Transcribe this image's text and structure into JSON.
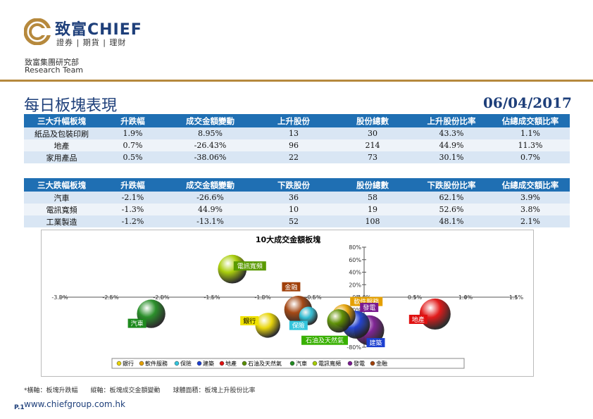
{
  "header": {
    "brand": "致富CHIEF",
    "tagline": "證券 | 期貨 | 理財",
    "team_cn": "致富集團研究部",
    "team_en": "Research Team"
  },
  "page": {
    "title": "每日板塊表現",
    "date": "06/04/2017",
    "footnote": "*橫軸：板塊升跌幅　　縱軸：板塊成交金額變動　　球體面積：板塊上升股份比率",
    "page_number": "P.1",
    "website": "www.chiefgroup.com.hk"
  },
  "top_gainers": {
    "headers": [
      "三大升幅板塊",
      "升跌幅",
      "成交金額變動",
      "上升股份",
      "股份總數",
      "上升股份比率",
      "佔總成交額比率"
    ],
    "rows": [
      [
        "紙品及包裝印刷",
        "1.9%",
        "8.95%",
        "13",
        "30",
        "43.3%",
        "1.1%"
      ],
      [
        "地產",
        "0.7%",
        "-26.43%",
        "96",
        "214",
        "44.9%",
        "11.3%"
      ],
      [
        "家用產品",
        "0.5%",
        "-38.06%",
        "22",
        "73",
        "30.1%",
        "0.7%"
      ]
    ]
  },
  "top_losers": {
    "headers": [
      "三大跌幅板塊",
      "升跌幅",
      "成交金額變動",
      "下跌股份",
      "股份總數",
      "下跌股份比率",
      "佔總成交額比率"
    ],
    "rows": [
      [
        "汽車",
        "-2.1%",
        "-26.6%",
        "36",
        "58",
        "62.1%",
        "3.9%"
      ],
      [
        "電訊寬頻",
        "-1.3%",
        "44.9%",
        "10",
        "19",
        "52.6%",
        "3.8%"
      ],
      [
        "工業製造",
        "-1.2%",
        "-13.1%",
        "52",
        "108",
        "48.1%",
        "2.1%"
      ]
    ]
  },
  "chart_data": {
    "type": "scatter",
    "title": "10大成交金額板塊",
    "xlim": [
      -3.0,
      1.5
    ],
    "ylim": [
      -80,
      80
    ],
    "x_ticks": [
      "-3.0%",
      "-2.5%",
      "-2.0%",
      "-1.5%",
      "-1.0%",
      "-0.5%",
      "0.0%",
      "0.5%",
      "1.0%",
      "1.5%"
    ],
    "y_ticks": [
      "80%",
      "60%",
      "40%",
      "20%",
      "0%",
      "-20%",
      "-40%",
      "-60%",
      "-80%"
    ],
    "legend_position": "bottom",
    "series": [
      {
        "name": "銀行",
        "x": -0.95,
        "y": -45,
        "size": 0.4,
        "color": "#e8d400"
      },
      {
        "name": "軟件服務",
        "x": -0.2,
        "y": -30,
        "size": 0.35,
        "color": "#e5a000"
      },
      {
        "name": "保險",
        "x": -0.55,
        "y": -30,
        "size": 0.22,
        "color": "#33c5dd"
      },
      {
        "name": "建築",
        "x": -0.08,
        "y": -44,
        "size": 0.5,
        "color": "#1c3fd0"
      },
      {
        "name": "地產",
        "x": 0.7,
        "y": -27,
        "size": 0.62,
        "color": "#e01010"
      },
      {
        "name": "石油及天然氣",
        "x": -0.25,
        "y": -38,
        "size": 0.35,
        "color": "#5a8f00"
      },
      {
        "name": "汽車",
        "x": -2.1,
        "y": -26.6,
        "size": 0.52,
        "color": "#208a20"
      },
      {
        "name": "電訊寬頻",
        "x": -1.3,
        "y": 44.9,
        "size": 0.53,
        "color": "#a6cc00"
      },
      {
        "name": "發電",
        "x": 0.05,
        "y": -53,
        "size": 0.58,
        "color": "#7a1a90"
      },
      {
        "name": "金融",
        "x": -0.65,
        "y": -20,
        "size": 0.5,
        "color": "#a0400a"
      }
    ],
    "label_badges": [
      {
        "series": "電訊寬頻",
        "text": "電訊寬頻",
        "bg": "#5a9a00"
      },
      {
        "series": "金融",
        "text": "金融",
        "bg": "#a0400a"
      },
      {
        "series": "軟件服務",
        "text": "軟件服務",
        "bg": "#e5a000"
      },
      {
        "series": "發電",
        "text": "發電",
        "bg": "#7a1a90"
      },
      {
        "series": "地產",
        "text": "地產",
        "bg": "#e01010"
      },
      {
        "series": "銀行",
        "text": "銀行",
        "bg": "#f0e200"
      },
      {
        "series": "保險",
        "text": "保險",
        "bg": "#33c5dd"
      },
      {
        "series": "汽車",
        "text": "汽車",
        "bg": "#1e8a1e"
      },
      {
        "series": "石油及天然氣",
        "text": "石油及天然氣",
        "bg": "#38b000"
      },
      {
        "series": "建築",
        "text": "建築",
        "bg": "#1c3fd0"
      }
    ]
  }
}
